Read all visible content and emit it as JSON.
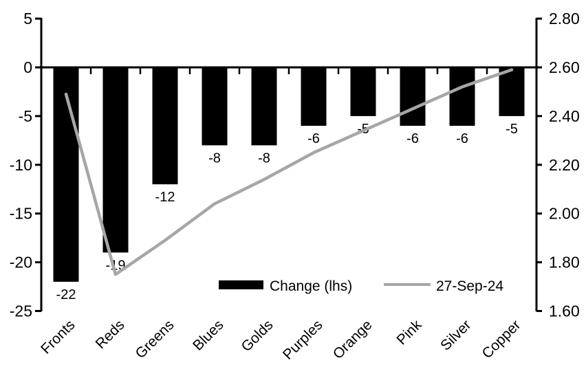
{
  "chart_data": {
    "type": "combo",
    "title": "",
    "categories": [
      "Fronts",
      "Reds",
      "Greens",
      "Blues",
      "Golds",
      "Purples",
      "Orange",
      "Pink",
      "Silver",
      "Copper"
    ],
    "series": [
      {
        "name": "Change (lhs)",
        "type": "bar",
        "axis": "left",
        "color": "#000000",
        "values": [
          -22,
          -19,
          -12,
          -8,
          -8,
          -6,
          -5,
          -6,
          -6,
          -5
        ],
        "data_labels": [
          "-22",
          "-19",
          "-12",
          "-8",
          "-8",
          "-6",
          "-5",
          "-6",
          "-6",
          "-5"
        ]
      },
      {
        "name": "27-Sep-24",
        "type": "line",
        "axis": "right",
        "color": "#a6a6a6",
        "values": [
          2.49,
          1.75,
          1.89,
          2.04,
          2.14,
          2.25,
          2.34,
          2.43,
          2.52,
          2.59
        ]
      }
    ],
    "left_axis": {
      "tick_labels": [
        "5",
        "0",
        "-5",
        "-10",
        "-15",
        "-20",
        "-25"
      ],
      "range": [
        -25,
        5
      ]
    },
    "right_axis": {
      "tick_labels": [
        "2.80",
        "2.60",
        "2.40",
        "2.20",
        "2.00",
        "1.80",
        "1.60"
      ],
      "range": [
        1.6,
        2.8
      ]
    },
    "legend": {
      "position": "bottom-inside",
      "items": [
        {
          "label": "Change (lhs)",
          "swatch": "bar",
          "color": "#000000"
        },
        {
          "label": "27-Sep-24",
          "swatch": "line",
          "color": "#a6a6a6"
        }
      ]
    },
    "grid": false,
    "axis_color": "#000000",
    "background": "#ffffff"
  }
}
